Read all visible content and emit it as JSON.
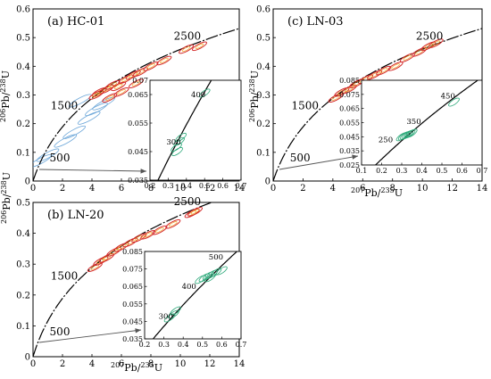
{
  "chart_data": [
    {
      "type": "scatter",
      "panel_label": "(a) HC-01",
      "xlabel": "",
      "ylabel": "206Pb/238U",
      "xlim": [
        0,
        14
      ],
      "ylim": [
        0,
        0.6
      ],
      "x_ticks": [
        "0",
        "2",
        "4",
        "6",
        "8",
        "10",
        "12",
        "14"
      ],
      "y_ticks": [
        "0",
        "0.1",
        "0.2",
        "0.3",
        "0.4",
        "0.5",
        "0.6"
      ],
      "concordia_labels": [
        {
          "text": "500",
          "x": 0.64,
          "y": 0.081
        },
        {
          "text": "1500",
          "x": 3.5,
          "y": 0.262
        },
        {
          "text": "2500",
          "x": 10.4,
          "y": 0.474
        }
      ],
      "ellipses_red": [
        {
          "x": 4.5,
          "y": 0.31
        },
        {
          "x": 5.0,
          "y": 0.32
        },
        {
          "x": 5.4,
          "y": 0.335
        },
        {
          "x": 5.8,
          "y": 0.33
        },
        {
          "x": 6.3,
          "y": 0.355
        },
        {
          "x": 6.8,
          "y": 0.37
        },
        {
          "x": 7.3,
          "y": 0.38
        },
        {
          "x": 8.0,
          "y": 0.4
        },
        {
          "x": 8.9,
          "y": 0.42
        },
        {
          "x": 10.4,
          "y": 0.46
        },
        {
          "x": 11.3,
          "y": 0.47
        },
        {
          "x": 5.2,
          "y": 0.29
        },
        {
          "x": 6.0,
          "y": 0.31
        },
        {
          "x": 4.3,
          "y": 0.3
        },
        {
          "x": 7.0,
          "y": 0.34
        }
      ],
      "ellipses_blue_discordant": [
        {
          "x": 0.5,
          "y": 0.07
        },
        {
          "x": 1.0,
          "y": 0.09
        },
        {
          "x": 2.2,
          "y": 0.14
        },
        {
          "x": 2.8,
          "y": 0.17
        },
        {
          "x": 3.8,
          "y": 0.22
        },
        {
          "x": 4.3,
          "y": 0.25
        },
        {
          "x": 3.2,
          "y": 0.28
        },
        {
          "x": 4.8,
          "y": 0.27
        }
      ],
      "inset": {
        "xlim": [
          0.2,
          0.7
        ],
        "ylim": [
          0.035,
          0.07
        ],
        "x_ticks": [
          "0.2",
          "0.3",
          "0.4",
          "0.5",
          "0.6",
          "0.7"
        ],
        "y_ticks": [
          "0.035",
          "0.045",
          "0.055",
          "0.065",
          "0.07"
        ],
        "age_labels": [
          {
            "text": "300",
            "x": 0.33,
            "y": 0.0475
          },
          {
            "text": "400",
            "x": 0.465,
            "y": 0.064
          }
        ],
        "ellipses_green": [
          {
            "x": 0.345,
            "y": 0.0465
          },
          {
            "x": 0.36,
            "y": 0.0485
          },
          {
            "x": 0.35,
            "y": 0.045
          },
          {
            "x": 0.37,
            "y": 0.05
          },
          {
            "x": 0.5,
            "y": 0.0655
          }
        ]
      }
    },
    {
      "type": "scatter",
      "panel_label": "(b) LN-20",
      "xlabel": "207Pb/235U",
      "ylabel": "",
      "xlim": [
        0,
        14
      ],
      "ylim": [
        0,
        0.5
      ],
      "x_ticks": [
        "0",
        "2",
        "4",
        "6",
        "8",
        "10",
        "12",
        "14"
      ],
      "y_ticks": [
        "0",
        "0.1",
        "0.2",
        "0.3",
        "0.4",
        "0.5"
      ],
      "concordia_labels": [
        {
          "text": "500",
          "x": 0.64,
          "y": 0.081
        },
        {
          "text": "1500",
          "x": 3.5,
          "y": 0.262
        },
        {
          "text": "2500",
          "x": 10.4,
          "y": 0.474
        }
      ],
      "ellipses_red": [
        {
          "x": 4.2,
          "y": 0.29
        },
        {
          "x": 4.6,
          "y": 0.31
        },
        {
          "x": 5.0,
          "y": 0.32
        },
        {
          "x": 5.5,
          "y": 0.34
        },
        {
          "x": 6.0,
          "y": 0.355
        },
        {
          "x": 6.6,
          "y": 0.37
        },
        {
          "x": 7.2,
          "y": 0.385
        },
        {
          "x": 7.8,
          "y": 0.395
        },
        {
          "x": 8.6,
          "y": 0.41
        },
        {
          "x": 9.5,
          "y": 0.43
        },
        {
          "x": 10.8,
          "y": 0.465
        },
        {
          "x": 11.0,
          "y": 0.47
        }
      ],
      "inset": {
        "xlim": [
          0.2,
          0.7
        ],
        "ylim": [
          0.035,
          0.085
        ],
        "x_ticks": [
          "0.2",
          "0.3",
          "0.4",
          "0.5",
          "0.6",
          "0.7"
        ],
        "y_ticks": [
          "0.035",
          "0.045",
          "0.055",
          "0.065",
          "0.075",
          "0.085"
        ],
        "age_labels": [
          {
            "text": "300",
            "x": 0.31,
            "y": 0.0465
          },
          {
            "text": "400",
            "x": 0.43,
            "y": 0.0635
          },
          {
            "text": "500",
            "x": 0.57,
            "y": 0.0805
          }
        ],
        "ellipses_green": [
          {
            "x": 0.51,
            "y": 0.07
          },
          {
            "x": 0.53,
            "y": 0.071
          },
          {
            "x": 0.55,
            "y": 0.072
          },
          {
            "x": 0.57,
            "y": 0.073
          },
          {
            "x": 0.49,
            "y": 0.069
          },
          {
            "x": 0.54,
            "y": 0.07
          },
          {
            "x": 0.6,
            "y": 0.074
          },
          {
            "x": 0.35,
            "y": 0.049
          },
          {
            "x": 0.33,
            "y": 0.047
          },
          {
            "x": 0.36,
            "y": 0.051
          }
        ]
      }
    },
    {
      "type": "scatter",
      "panel_label": "(c) LN-03",
      "xlabel": "207Pb/235U",
      "ylabel": "206Pb/238U",
      "xlim": [
        0,
        14
      ],
      "ylim": [
        0,
        0.6
      ],
      "x_ticks": [
        "0",
        "2",
        "4",
        "6",
        "8",
        "10",
        "12",
        "14"
      ],
      "y_ticks": [
        "0",
        "0.1",
        "0.2",
        "0.3",
        "0.4",
        "0.5",
        "0.6"
      ],
      "concordia_labels": [
        {
          "text": "500",
          "x": 0.64,
          "y": 0.081
        },
        {
          "text": "1500",
          "x": 3.5,
          "y": 0.262
        },
        {
          "text": "2500",
          "x": 10.4,
          "y": 0.474
        }
      ],
      "ellipses_red": [
        {
          "x": 4.2,
          "y": 0.29
        },
        {
          "x": 4.6,
          "y": 0.31
        },
        {
          "x": 5.1,
          "y": 0.32
        },
        {
          "x": 5.6,
          "y": 0.34
        },
        {
          "x": 6.2,
          "y": 0.355
        },
        {
          "x": 6.8,
          "y": 0.37
        },
        {
          "x": 7.4,
          "y": 0.385
        },
        {
          "x": 8.2,
          "y": 0.4
        },
        {
          "x": 9.0,
          "y": 0.43
        },
        {
          "x": 9.8,
          "y": 0.45
        },
        {
          "x": 10.4,
          "y": 0.47
        },
        {
          "x": 10.9,
          "y": 0.48
        }
      ],
      "inset": {
        "xlim": [
          0.1,
          0.7
        ],
        "ylim": [
          0.025,
          0.085
        ],
        "x_ticks": [
          "0.1",
          "0.2",
          "0.3",
          "0.4",
          "0.5",
          "0.6",
          "0.7"
        ],
        "y_ticks": [
          "0.025",
          "0.035",
          "0.045",
          "0.055",
          "0.065",
          "0.075",
          "0.085"
        ],
        "age_labels": [
          {
            "text": "250",
            "x": 0.22,
            "y": 0.041
          },
          {
            "text": "350",
            "x": 0.36,
            "y": 0.054
          },
          {
            "text": "450",
            "x": 0.53,
            "y": 0.072
          }
        ],
        "ellipses_green": [
          {
            "x": 0.3,
            "y": 0.045
          },
          {
            "x": 0.31,
            "y": 0.0455
          },
          {
            "x": 0.32,
            "y": 0.046
          },
          {
            "x": 0.33,
            "y": 0.0465
          },
          {
            "x": 0.34,
            "y": 0.047
          },
          {
            "x": 0.35,
            "y": 0.0475
          },
          {
            "x": 0.56,
            "y": 0.0695
          }
        ]
      }
    }
  ],
  "colors": {
    "concordia": "#000000",
    "ellipse_red": "#d42a2a",
    "ellipse_blue": "#6aa5d8",
    "ellipse_green": "#2aa878",
    "arrow": "#555555"
  }
}
